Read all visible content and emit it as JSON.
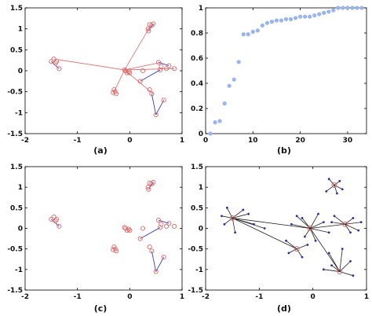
{
  "chart_data": [
    {
      "panel": "(a)",
      "type": "scatter",
      "xlim": [
        -2,
        1
      ],
      "ylim": [
        -1.5,
        1.5
      ],
      "x_ticks": [
        "-2",
        "-1",
        "0",
        "1"
      ],
      "y_ticks": [
        "-1.5",
        "-1",
        "-0.5",
        "0",
        "0.5",
        "1",
        "1.5"
      ],
      "points_color": "#e06a6a",
      "lines_color": "#e06a6a",
      "spanning_color": "#3a3fb8",
      "points": [
        [
          -1.5,
          0.22
        ],
        [
          -1.45,
          0.28
        ],
        [
          -1.42,
          0.18
        ],
        [
          -1.4,
          0.22
        ],
        [
          -1.35,
          0.05
        ],
        [
          -0.1,
          0.02
        ],
        [
          -0.08,
          0.0
        ],
        [
          -0.05,
          -0.05
        ],
        [
          -0.02,
          -0.02
        ],
        [
          0.0,
          -0.05
        ],
        [
          -0.3,
          -0.45
        ],
        [
          -0.28,
          -0.5
        ],
        [
          -0.26,
          -0.55
        ],
        [
          -0.32,
          -0.52
        ],
        [
          0.35,
          1.0
        ],
        [
          0.38,
          1.1
        ],
        [
          0.42,
          1.08
        ],
        [
          0.36,
          0.95
        ],
        [
          0.45,
          1.12
        ],
        [
          0.55,
          0.2
        ],
        [
          0.6,
          0.1
        ],
        [
          0.7,
          0.05
        ],
        [
          0.75,
          0.12
        ],
        [
          0.85,
          0.05
        ],
        [
          0.58,
          0.02
        ],
        [
          0.38,
          -0.45
        ],
        [
          0.42,
          -0.55
        ],
        [
          0.5,
          -1.05
        ],
        [
          0.65,
          -0.7
        ],
        [
          0.25,
          0.0
        ],
        [
          0.2,
          -0.25
        ]
      ],
      "links": [
        [
          [
            -0.1,
            0.02
          ],
          [
            -1.45,
            0.28
          ]
        ],
        [
          [
            -0.1,
            0.02
          ],
          [
            0.4,
            1.08
          ]
        ],
        [
          [
            -0.1,
            0.02
          ],
          [
            0.85,
            0.05
          ]
        ],
        [
          [
            -0.1,
            0.02
          ],
          [
            0.45,
            -0.55
          ]
        ],
        [
          [
            -0.1,
            0.02
          ],
          [
            -0.3,
            -0.5
          ]
        ],
        [
          [
            -0.1,
            0.02
          ],
          [
            0.6,
            0.2
          ]
        ]
      ],
      "spanning": [
        [
          [
            -1.5,
            0.22
          ],
          [
            -1.35,
            0.05
          ]
        ],
        [
          [
            0.36,
            0.95
          ],
          [
            0.45,
            1.12
          ]
        ],
        [
          [
            0.55,
            0.2
          ],
          [
            0.75,
            0.12
          ]
        ],
        [
          [
            0.5,
            -1.05
          ],
          [
            0.42,
            -0.55
          ]
        ],
        [
          [
            0.5,
            -1.05
          ],
          [
            0.65,
            -0.7
          ]
        ],
        [
          [
            0.2,
            -0.25
          ],
          [
            0.58,
            0.02
          ]
        ]
      ]
    },
    {
      "panel": "(b)",
      "type": "scatter",
      "xlim": [
        0,
        34
      ],
      "ylim": [
        0,
        1
      ],
      "x_ticks": [
        "0",
        "10",
        "20",
        "30"
      ],
      "y_ticks": [
        "0",
        "0.2",
        "0.4",
        "0.6",
        "0.8",
        "1"
      ],
      "color": "#9bb4ec",
      "x": [
        1,
        2,
        3,
        4,
        5,
        6,
        7,
        8,
        9,
        10,
        11,
        12,
        13,
        14,
        15,
        16,
        17,
        18,
        19,
        20,
        21,
        22,
        23,
        24,
        25,
        26,
        27,
        28,
        29,
        30,
        31,
        32,
        33
      ],
      "y": [
        0.0,
        0.09,
        0.1,
        0.24,
        0.38,
        0.43,
        0.57,
        0.79,
        0.79,
        0.81,
        0.82,
        0.86,
        0.88,
        0.89,
        0.9,
        0.9,
        0.91,
        0.91,
        0.92,
        0.93,
        0.93,
        0.93,
        0.94,
        0.95,
        0.96,
        0.97,
        0.98,
        1.0,
        1.0,
        1.0,
        1.0,
        1.0,
        1.0
      ]
    },
    {
      "panel": "(c)",
      "type": "scatter",
      "xlim": [
        -2,
        1
      ],
      "ylim": [
        -1.5,
        1.5
      ],
      "x_ticks": [
        "-2",
        "-1",
        "0",
        "1"
      ],
      "y_ticks": [
        "-1.5",
        "-1",
        "-0.5",
        "0",
        "0.5",
        "1",
        "1.5"
      ],
      "points_color": "#e06a6a",
      "spanning_color": "#3a3fb8",
      "points": [
        [
          -1.5,
          0.22
        ],
        [
          -1.45,
          0.28
        ],
        [
          -1.42,
          0.18
        ],
        [
          -1.4,
          0.22
        ],
        [
          -1.35,
          0.05
        ],
        [
          -0.1,
          0.02
        ],
        [
          -0.08,
          0.0
        ],
        [
          -0.05,
          -0.05
        ],
        [
          -0.02,
          -0.02
        ],
        [
          0.0,
          -0.05
        ],
        [
          -0.3,
          -0.45
        ],
        [
          -0.28,
          -0.5
        ],
        [
          -0.26,
          -0.55
        ],
        [
          -0.32,
          -0.52
        ],
        [
          0.35,
          1.0
        ],
        [
          0.38,
          1.1
        ],
        [
          0.42,
          1.08
        ],
        [
          0.36,
          0.95
        ],
        [
          0.45,
          1.12
        ],
        [
          0.55,
          0.2
        ],
        [
          0.6,
          0.1
        ],
        [
          0.7,
          0.05
        ],
        [
          0.75,
          0.12
        ],
        [
          0.85,
          0.05
        ],
        [
          0.58,
          0.02
        ],
        [
          0.38,
          -0.45
        ],
        [
          0.42,
          -0.55
        ],
        [
          0.5,
          -1.05
        ],
        [
          0.65,
          -0.7
        ],
        [
          0.25,
          0.0
        ],
        [
          0.2,
          -0.25
        ]
      ],
      "spanning": [
        [
          [
            -1.5,
            0.22
          ],
          [
            -1.35,
            0.05
          ]
        ],
        [
          [
            0.36,
            0.95
          ],
          [
            0.45,
            1.12
          ]
        ],
        [
          [
            0.55,
            0.2
          ],
          [
            0.75,
            0.12
          ]
        ],
        [
          [
            0.5,
            -1.05
          ],
          [
            0.42,
            -0.55
          ]
        ],
        [
          [
            0.5,
            -1.05
          ],
          [
            0.65,
            -0.7
          ]
        ],
        [
          [
            0.2,
            -0.25
          ],
          [
            0.58,
            0.02
          ]
        ]
      ]
    },
    {
      "panel": "(d)",
      "type": "scatter",
      "xlim": [
        -2,
        1
      ],
      "ylim": [
        -1.5,
        1.5
      ],
      "x_ticks": [
        "-2",
        "-1",
        "0",
        "1"
      ],
      "y_ticks": [
        "-1.5",
        "-1",
        "-0.5",
        "0",
        "0.5",
        "1",
        "1.5"
      ],
      "centers_color": "#e06a6a",
      "points_color": "#2a2f9e",
      "lines_color": "#222222",
      "centers": [
        [
          -1.5,
          0.25
        ],
        [
          -0.05,
          0.0
        ],
        [
          -0.3,
          -0.5
        ],
        [
          0.4,
          1.05
        ],
        [
          0.6,
          0.1
        ],
        [
          0.5,
          -1.05
        ]
      ],
      "points": [
        [
          -1.6,
          0.5
        ],
        [
          -1.3,
          0.45
        ],
        [
          -1.2,
          0.35
        ],
        [
          -1.65,
          0.1
        ],
        [
          -1.45,
          -0.1
        ],
        [
          -1.1,
          0.1
        ],
        [
          -0.9,
          0.0
        ],
        [
          -1.7,
          0.3
        ],
        [
          -0.3,
          0.3
        ],
        [
          -0.2,
          0.25
        ],
        [
          0.1,
          0.35
        ],
        [
          0.2,
          0.15
        ],
        [
          -0.4,
          0.1
        ],
        [
          0.05,
          -0.3
        ],
        [
          -0.15,
          -0.2
        ],
        [
          0.3,
          -0.1
        ],
        [
          -0.5,
          -0.3
        ],
        [
          -0.2,
          -0.7
        ],
        [
          -0.45,
          -0.6
        ],
        [
          -0.1,
          -0.4
        ],
        [
          0.25,
          0.9
        ],
        [
          0.3,
          1.2
        ],
        [
          0.5,
          1.15
        ],
        [
          0.55,
          0.95
        ],
        [
          0.45,
          0.85
        ],
        [
          0.4,
          0.3
        ],
        [
          0.75,
          0.25
        ],
        [
          0.9,
          0.15
        ],
        [
          0.85,
          -0.05
        ],
        [
          0.7,
          -0.1
        ],
        [
          0.35,
          0.15
        ],
        [
          0.3,
          -0.6
        ],
        [
          0.55,
          -0.5
        ],
        [
          0.7,
          -0.8
        ],
        [
          0.35,
          -0.9
        ],
        [
          0.75,
          -1.15
        ],
        [
          0.2,
          -1.0
        ]
      ],
      "links": [
        [
          [
            -1.5,
            0.25
          ],
          [
            -1.6,
            0.5
          ]
        ],
        [
          [
            -1.5,
            0.25
          ],
          [
            -1.3,
            0.45
          ]
        ],
        [
          [
            -1.5,
            0.25
          ],
          [
            -1.2,
            0.35
          ]
        ],
        [
          [
            -1.5,
            0.25
          ],
          [
            -1.65,
            0.1
          ]
        ],
        [
          [
            -1.5,
            0.25
          ],
          [
            -1.45,
            -0.1
          ]
        ],
        [
          [
            -1.5,
            0.25
          ],
          [
            -1.1,
            0.1
          ]
        ],
        [
          [
            -1.5,
            0.25
          ],
          [
            -0.9,
            0.0
          ]
        ],
        [
          [
            -1.5,
            0.25
          ],
          [
            -1.7,
            0.3
          ]
        ],
        [
          [
            -1.5,
            0.25
          ],
          [
            -0.05,
            0.0
          ]
        ],
        [
          [
            -1.5,
            0.25
          ],
          [
            -0.3,
            -0.5
          ]
        ],
        [
          [
            -0.05,
            0.0
          ],
          [
            -0.3,
            0.3
          ]
        ],
        [
          [
            -0.05,
            0.0
          ],
          [
            -0.2,
            0.25
          ]
        ],
        [
          [
            -0.05,
            0.0
          ],
          [
            0.1,
            0.35
          ]
        ],
        [
          [
            -0.05,
            0.0
          ],
          [
            0.2,
            0.15
          ]
        ],
        [
          [
            -0.05,
            0.0
          ],
          [
            -0.4,
            0.1
          ]
        ],
        [
          [
            -0.05,
            0.0
          ],
          [
            0.05,
            -0.3
          ]
        ],
        [
          [
            -0.05,
            0.0
          ],
          [
            -0.15,
            -0.2
          ]
        ],
        [
          [
            -0.05,
            0.0
          ],
          [
            0.3,
            -0.1
          ]
        ],
        [
          [
            -0.3,
            -0.5
          ],
          [
            -0.5,
            -0.3
          ]
        ],
        [
          [
            -0.3,
            -0.5
          ],
          [
            -0.2,
            -0.7
          ]
        ],
        [
          [
            -0.3,
            -0.5
          ],
          [
            -0.45,
            -0.6
          ]
        ],
        [
          [
            -0.3,
            -0.5
          ],
          [
            -0.1,
            -0.4
          ]
        ],
        [
          [
            0.4,
            1.05
          ],
          [
            0.25,
            0.9
          ]
        ],
        [
          [
            0.4,
            1.05
          ],
          [
            0.3,
            1.2
          ]
        ],
        [
          [
            0.4,
            1.05
          ],
          [
            0.5,
            1.15
          ]
        ],
        [
          [
            0.4,
            1.05
          ],
          [
            0.55,
            0.95
          ]
        ],
        [
          [
            0.4,
            1.05
          ],
          [
            0.45,
            0.85
          ]
        ],
        [
          [
            0.6,
            0.1
          ],
          [
            0.4,
            0.3
          ]
        ],
        [
          [
            0.6,
            0.1
          ],
          [
            0.75,
            0.25
          ]
        ],
        [
          [
            0.6,
            0.1
          ],
          [
            0.9,
            0.15
          ]
        ],
        [
          [
            0.6,
            0.1
          ],
          [
            0.85,
            -0.05
          ]
        ],
        [
          [
            0.6,
            0.1
          ],
          [
            0.7,
            -0.1
          ]
        ],
        [
          [
            0.6,
            0.1
          ],
          [
            0.35,
            0.15
          ]
        ],
        [
          [
            0.5,
            -1.05
          ],
          [
            0.3,
            -0.6
          ]
        ],
        [
          [
            0.5,
            -1.05
          ],
          [
            0.55,
            -0.5
          ]
        ],
        [
          [
            0.5,
            -1.05
          ],
          [
            0.7,
            -0.8
          ]
        ],
        [
          [
            0.5,
            -1.05
          ],
          [
            0.35,
            -0.9
          ]
        ],
        [
          [
            0.5,
            -1.05
          ],
          [
            0.75,
            -1.15
          ]
        ],
        [
          [
            0.5,
            -1.05
          ],
          [
            0.2,
            -1.0
          ]
        ],
        [
          [
            0.6,
            0.1
          ],
          [
            -0.05,
            0.0
          ]
        ],
        [
          [
            0.5,
            -1.05
          ],
          [
            -0.05,
            0.0
          ]
        ]
      ]
    }
  ]
}
